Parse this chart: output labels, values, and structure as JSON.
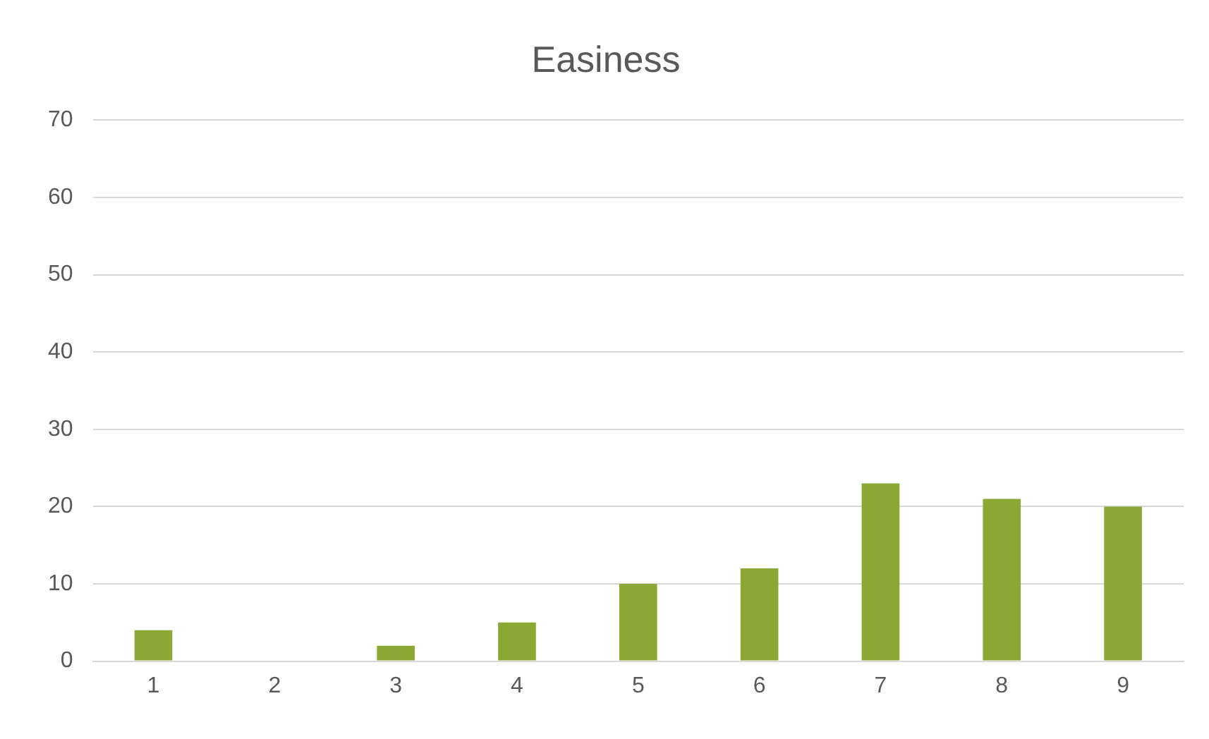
{
  "chart_data": {
    "type": "bar",
    "title": "Easiness",
    "categories": [
      "1",
      "2",
      "3",
      "4",
      "5",
      "6",
      "7",
      "8",
      "9"
    ],
    "values": [
      4,
      0,
      2,
      5,
      10,
      12,
      23,
      21,
      20
    ],
    "color": "#8aa833",
    "ylim": [
      0,
      70
    ],
    "yticks": [
      0,
      10,
      20,
      30,
      40,
      50,
      60,
      70
    ],
    "grid": "y",
    "legend": false
  }
}
